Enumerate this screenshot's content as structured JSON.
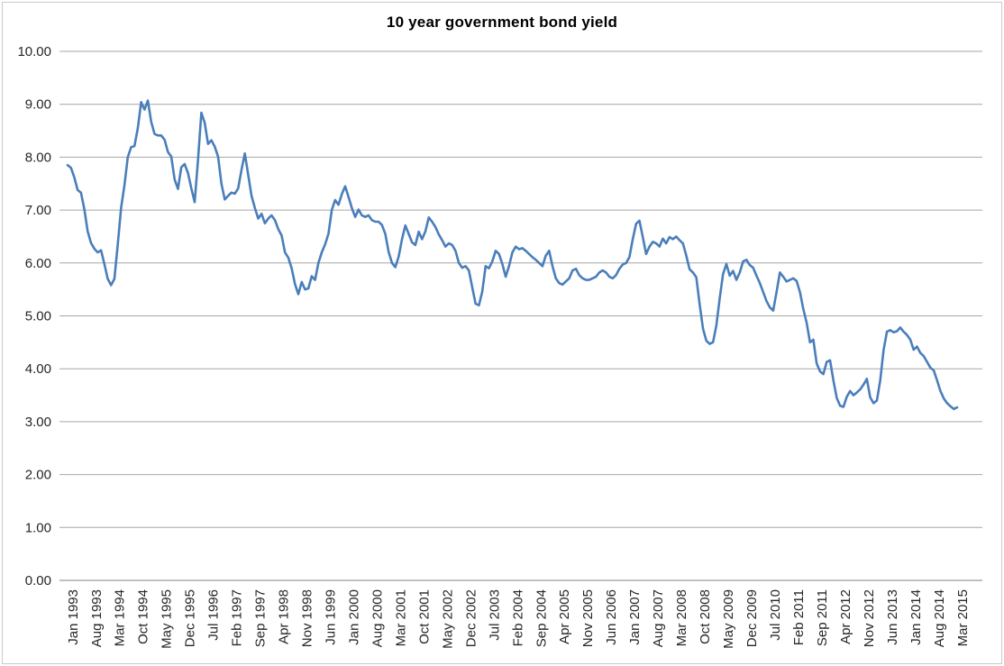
{
  "window": {
    "background": "#ffffff",
    "border_color": "#c9c9c9"
  },
  "style": {
    "grid_color": "#a6a6a6",
    "axis_color": "#808080",
    "text_color": "#262626",
    "title_color": "#000000"
  },
  "chart_data": {
    "type": "line",
    "title": "10 year government bond yield",
    "xlabel": "",
    "ylabel": "",
    "ylim": [
      0,
      10
    ],
    "y_tick_step": 1,
    "y_tick_format_decimals": 2,
    "grid": "horizontal",
    "legend": "none",
    "x_start": "Jan 1993",
    "x_end": "Mar 2015",
    "points_per_tick": 7,
    "x_tick_labels": [
      "Jan 1993",
      "Aug 1993",
      "Mar 1994",
      "Oct 1994",
      "May 1995",
      "Dec 1995",
      "Jul 1996",
      "Feb 1997",
      "Sep 1997",
      "Apr 1998",
      "Nov 1998",
      "Jun 1999",
      "Jan 2000",
      "Aug 2000",
      "Mar 2001",
      "Oct 2001",
      "May 2002",
      "Dec 2002",
      "Jul 2003",
      "Feb 2004",
      "Sep 2004",
      "Apr 2005",
      "Nov 2005",
      "Jun 2006",
      "Jan 2007",
      "Aug 2007",
      "Mar 2008",
      "Oct 2008",
      "May 2009",
      "Dec 2009",
      "Jul 2010",
      "Feb 2011",
      "Sep 2011",
      "Apr 2012",
      "Nov 2012",
      "Jun 2013",
      "Jan 2014",
      "Aug 2014",
      "Mar 2015"
    ],
    "series": [
      {
        "name": "10 year government bond yield",
        "color": "#4a7ebb",
        "values": [
          7.85,
          7.8,
          7.62,
          7.38,
          7.33,
          7.02,
          6.6,
          6.38,
          6.27,
          6.2,
          6.24,
          5.98,
          5.7,
          5.58,
          5.7,
          6.35,
          7.04,
          7.47,
          8.0,
          8.19,
          8.21,
          8.55,
          9.04,
          8.9,
          9.07,
          8.67,
          8.44,
          8.41,
          8.41,
          8.33,
          8.1,
          8.01,
          7.58,
          7.4,
          7.81,
          7.87,
          7.7,
          7.41,
          7.15,
          7.95,
          8.84,
          8.65,
          8.25,
          8.32,
          8.2,
          8.01,
          7.5,
          7.2,
          7.27,
          7.33,
          7.31,
          7.41,
          7.76,
          8.07,
          7.67,
          7.27,
          7.04,
          6.84,
          6.93,
          6.75,
          6.84,
          6.9,
          6.81,
          6.64,
          6.52,
          6.2,
          6.1,
          5.9,
          5.6,
          5.41,
          5.64,
          5.5,
          5.52,
          5.75,
          5.68,
          6.0,
          6.2,
          6.35,
          6.55,
          7.0,
          7.19,
          7.1,
          7.3,
          7.45,
          7.25,
          7.04,
          6.87,
          7.01,
          6.9,
          6.87,
          6.9,
          6.81,
          6.78,
          6.78,
          6.72,
          6.55,
          6.21,
          6.0,
          5.92,
          6.12,
          6.45,
          6.71,
          6.55,
          6.39,
          6.34,
          6.59,
          6.45,
          6.6,
          6.86,
          6.78,
          6.68,
          6.54,
          6.43,
          6.31,
          6.37,
          6.34,
          6.23,
          6.0,
          5.91,
          5.94,
          5.86,
          5.54,
          5.23,
          5.2,
          5.46,
          5.94,
          5.9,
          6.03,
          6.23,
          6.17,
          5.98,
          5.74,
          5.94,
          6.2,
          6.31,
          6.26,
          6.28,
          6.23,
          6.17,
          6.11,
          6.06,
          6.0,
          5.94,
          6.14,
          6.23,
          5.94,
          5.71,
          5.62,
          5.59,
          5.65,
          5.71,
          5.86,
          5.89,
          5.77,
          5.71,
          5.68,
          5.68,
          5.71,
          5.74,
          5.82,
          5.86,
          5.82,
          5.74,
          5.71,
          5.77,
          5.89,
          5.97,
          6.0,
          6.11,
          6.45,
          6.74,
          6.8,
          6.49,
          6.17,
          6.31,
          6.4,
          6.37,
          6.31,
          6.46,
          6.37,
          6.49,
          6.45,
          6.5,
          6.43,
          6.37,
          6.14,
          5.88,
          5.82,
          5.73,
          5.22,
          4.76,
          4.53,
          4.47,
          4.5,
          4.82,
          5.33,
          5.79,
          5.98,
          5.76,
          5.85,
          5.68,
          5.82,
          6.03,
          6.06,
          5.96,
          5.91,
          5.76,
          5.62,
          5.45,
          5.28,
          5.16,
          5.1,
          5.45,
          5.82,
          5.74,
          5.65,
          5.68,
          5.71,
          5.66,
          5.45,
          5.13,
          4.87,
          4.5,
          4.55,
          4.1,
          3.95,
          3.9,
          4.13,
          4.16,
          3.78,
          3.45,
          3.3,
          3.28,
          3.47,
          3.58,
          3.5,
          3.55,
          3.61,
          3.7,
          3.81,
          3.46,
          3.35,
          3.4,
          3.78,
          4.35,
          4.7,
          4.73,
          4.69,
          4.71,
          4.78,
          4.7,
          4.64,
          4.55,
          4.36,
          4.42,
          4.3,
          4.24,
          4.13,
          4.02,
          3.97,
          3.78,
          3.58,
          3.44,
          3.35,
          3.29,
          3.24,
          3.27
        ]
      }
    ]
  }
}
